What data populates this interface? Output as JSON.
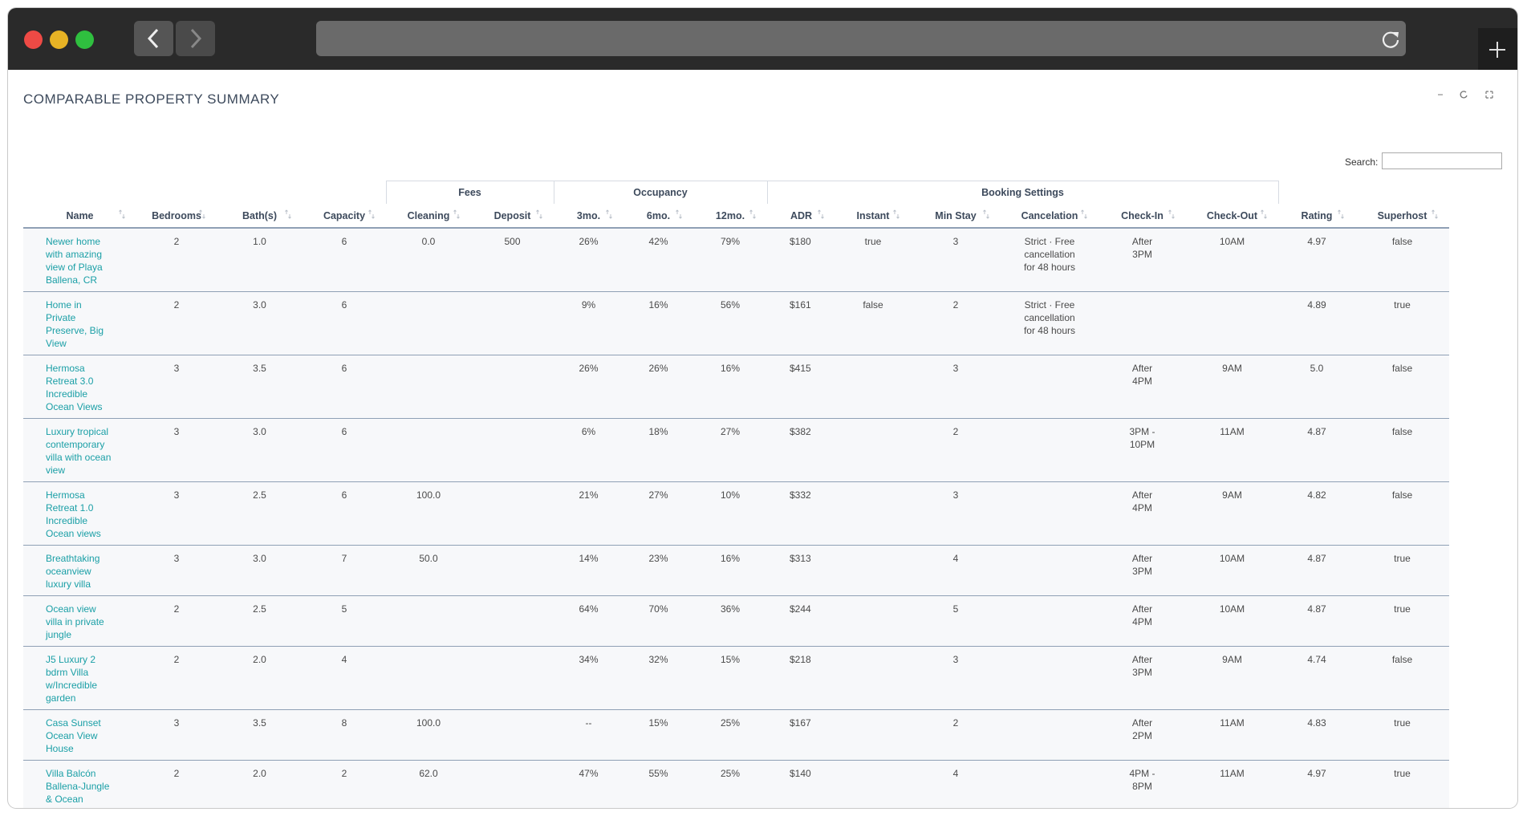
{
  "header": {
    "title": "COMPARABLE PROPERTY SUMMARY",
    "search_label": "Search:"
  },
  "table": {
    "groups": [
      {
        "label": null,
        "span": 4
      },
      {
        "label": "Fees",
        "span": 2
      },
      {
        "label": "Occupancy",
        "span": 3
      },
      {
        "label": "Booking Settings",
        "span": 6
      },
      {
        "label": null,
        "span": 2
      }
    ],
    "columns": [
      "Name",
      "Bedrooms",
      "Bath(s)",
      "Capacity",
      "Cleaning",
      "Deposit",
      "3mo.",
      "6mo.",
      "12mo.",
      "ADR",
      "Instant",
      "Min Stay",
      "Cancelation",
      "Check-In",
      "Check-Out",
      "Rating",
      "Superhost"
    ],
    "rows": [
      [
        "Newer home with amazing view of Playa Ballena, CR",
        "2",
        "1.0",
        "6",
        "0.0",
        "500",
        "26%",
        "42%",
        "79%",
        "$180",
        "true",
        "3",
        "Strict · Free cancellation for 48 hours",
        "After 3PM",
        "10AM",
        "4.97",
        "false"
      ],
      [
        "Home in Private Preserve, Big View",
        "2",
        "3.0",
        "6",
        null,
        null,
        "9%",
        "16%",
        "56%",
        "$161",
        "false",
        "2",
        "Strict · Free cancellation for 48 hours",
        null,
        null,
        "4.89",
        "true"
      ],
      [
        "Hermosa Retreat 3.0 Incredible Ocean Views",
        "3",
        "3.5",
        "6",
        null,
        null,
        "26%",
        "26%",
        "16%",
        "$415",
        null,
        "3",
        null,
        "After 4PM",
        "9AM",
        "5.0",
        "false"
      ],
      [
        "Luxury tropical contemporary villa with ocean view",
        "3",
        "3.0",
        "6",
        null,
        null,
        "6%",
        "18%",
        "27%",
        "$382",
        null,
        "2",
        null,
        "3PM - 10PM",
        "11AM",
        "4.87",
        "false"
      ],
      [
        "Hermosa Retreat 1.0 Incredible Ocean views",
        "3",
        "2.5",
        "6",
        "100.0",
        null,
        "21%",
        "27%",
        "10%",
        "$332",
        null,
        "3",
        null,
        "After 4PM",
        "9AM",
        "4.82",
        "false"
      ],
      [
        "Breathtaking oceanview luxury villa",
        "3",
        "3.0",
        "7",
        "50.0",
        null,
        "14%",
        "23%",
        "16%",
        "$313",
        null,
        "4",
        null,
        "After 3PM",
        "10AM",
        "4.87",
        "true"
      ],
      [
        "Ocean view villa in private jungle",
        "2",
        "2.5",
        "5",
        null,
        null,
        "64%",
        "70%",
        "36%",
        "$244",
        null,
        "5",
        null,
        "After 4PM",
        "10AM",
        "4.87",
        "true"
      ],
      [
        "J5 Luxury 2 bdrm Villa w/Incredible garden",
        "2",
        "2.0",
        "4",
        null,
        null,
        "34%",
        "32%",
        "15%",
        "$218",
        null,
        "3",
        null,
        "After 3PM",
        "9AM",
        "4.74",
        "false"
      ],
      [
        "Casa Sunset Ocean View House",
        "3",
        "3.5",
        "8",
        "100.0",
        null,
        "--",
        "15%",
        "25%",
        "$167",
        null,
        "2",
        null,
        "After 2PM",
        "11AM",
        "4.83",
        "true"
      ],
      [
        "Villa Balcón Ballena-Jungle & Ocean Views-Uvita CR",
        "2",
        "2.0",
        "2",
        "62.0",
        null,
        "47%",
        "55%",
        "25%",
        "$140",
        null,
        "4",
        null,
        "4PM - 8PM",
        "11AM",
        "4.97",
        "true"
      ]
    ]
  }
}
